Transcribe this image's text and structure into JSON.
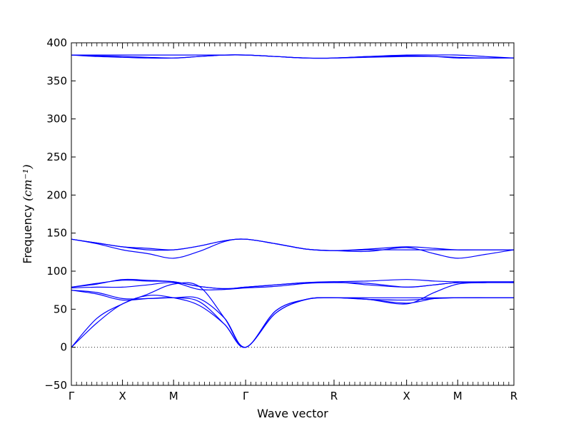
{
  "chart_data": {
    "type": "line",
    "title": "",
    "xlabel": "Wave vector",
    "ylabel": "Frequency ",
    "ylabel_math": "(cm⁻¹)",
    "ylim": [
      -50,
      400
    ],
    "yticks": [
      -50,
      0,
      50,
      100,
      150,
      200,
      250,
      300,
      350,
      400
    ],
    "xlim": [
      0,
      8.66
    ],
    "high_symmetry_points": [
      {
        "label": "Γ",
        "x": 0.0
      },
      {
        "label": "X",
        "x": 1.0
      },
      {
        "label": "M",
        "x": 2.0
      },
      {
        "label": "Γ",
        "x": 3.41
      },
      {
        "label": "R",
        "x": 5.14
      },
      {
        "label": "X",
        "x": 6.56
      },
      {
        "label": "M",
        "x": 7.56
      },
      {
        "label": "R",
        "x": 8.66
      }
    ],
    "zero_line": {
      "y": 0,
      "style": "dotted"
    },
    "line_color": "#0000ff",
    "grid": false,
    "legend": "none",
    "series": [
      {
        "x": [
          0,
          0.5,
          1.0,
          1.5,
          2.0,
          2.5,
          3.0,
          3.41,
          4.0,
          4.6,
          5.14,
          5.8,
          6.56,
          7.1,
          7.56,
          8.1,
          8.66
        ],
        "y": [
          384,
          384,
          384,
          384,
          384,
          384,
          384,
          384,
          382,
          380,
          380,
          381,
          382,
          382,
          381,
          380,
          380
        ]
      },
      {
        "x": [
          0,
          0.5,
          1.0,
          1.5,
          2.0,
          2.5,
          3.0,
          3.41,
          4.0,
          4.6,
          5.14,
          5.8,
          6.56,
          7.1,
          7.56,
          8.1,
          8.66
        ],
        "y": [
          384,
          383,
          382,
          381,
          380,
          382,
          384,
          384,
          382,
          380,
          380,
          382,
          384,
          384,
          384,
          382,
          380
        ]
      },
      {
        "x": [
          0,
          0.5,
          1.0,
          1.5,
          2.0,
          2.5,
          3.0,
          3.41,
          4.0,
          4.6,
          5.14,
          5.8,
          6.56,
          7.1,
          7.56,
          8.1,
          8.66
        ],
        "y": [
          384,
          382,
          381,
          380,
          380,
          382,
          384,
          384,
          382,
          380,
          380,
          382,
          383,
          382,
          380,
          380,
          380
        ]
      },
      {
        "x": [
          0,
          0.5,
          1.0,
          1.5,
          2.0,
          2.5,
          3.0,
          3.41,
          4.0,
          4.6,
          5.14,
          5.8,
          6.56,
          7.1,
          7.56,
          8.1,
          8.66
        ],
        "y": [
          142,
          137,
          132,
          130,
          128,
          133,
          140,
          142,
          136,
          129,
          127,
          128,
          128,
          128,
          128,
          128,
          128
        ]
      },
      {
        "x": [
          0,
          0.5,
          1.0,
          1.5,
          2.0,
          2.5,
          3.0,
          3.41,
          4.0,
          4.6,
          5.14,
          5.8,
          6.56,
          7.1,
          7.56,
          8.1,
          8.66
        ],
        "y": [
          142,
          137,
          132,
          128,
          128,
          133,
          140,
          142,
          136,
          129,
          127,
          129,
          132,
          130,
          128,
          128,
          128
        ]
      },
      {
        "x": [
          0,
          0.5,
          1.0,
          1.5,
          2.0,
          2.5,
          3.0,
          3.41,
          4.0,
          4.6,
          5.14,
          5.8,
          6.56,
          7.1,
          7.56,
          8.1,
          8.66
        ],
        "y": [
          142,
          136,
          128,
          123,
          117,
          126,
          139,
          142,
          136,
          129,
          127,
          126,
          131,
          123,
          117,
          122,
          128
        ]
      },
      {
        "x": [
          0,
          0.5,
          1.0,
          1.5,
          2.0,
          2.5,
          3.0,
          3.41,
          4.0,
          4.6,
          5.14,
          5.8,
          6.56,
          7.1,
          7.56,
          8.1,
          8.66
        ],
        "y": [
          79,
          83,
          89,
          88,
          86,
          80,
          77,
          79,
          82,
          85,
          86,
          87,
          89,
          87,
          86,
          86,
          86
        ]
      },
      {
        "x": [
          0,
          0.5,
          1.0,
          1.5,
          2.0,
          2.5,
          3.0,
          3.41,
          4.0,
          4.6,
          5.14,
          5.8,
          6.56,
          7.1,
          7.56,
          8.1,
          8.66
        ],
        "y": [
          79,
          84,
          88,
          87,
          86,
          80,
          77,
          79,
          82,
          85,
          86,
          82,
          79,
          82,
          85,
          85,
          86
        ]
      },
      {
        "x": [
          0,
          0.5,
          1.0,
          1.5,
          2.0,
          2.5,
          3.0,
          3.41,
          4.0,
          4.6,
          5.14,
          5.8,
          6.56,
          7.1,
          7.56,
          8.1,
          8.66
        ],
        "y": [
          78,
          79,
          79,
          82,
          85,
          76,
          76,
          78,
          80,
          84,
          85,
          84,
          79,
          82,
          85,
          85,
          85
        ]
      },
      {
        "x": [
          0,
          0.5,
          1.0,
          1.5,
          2.0,
          2.5,
          3.0,
          3.41,
          4.0,
          4.6,
          5.14,
          5.8,
          6.56,
          7.1,
          7.56,
          8.1,
          8.66
        ],
        "y": [
          75,
          72,
          64,
          64,
          65,
          64,
          38,
          0,
          48,
          63,
          65,
          65,
          65,
          65,
          65,
          65,
          65
        ]
      },
      {
        "x": [
          0,
          0.5,
          1.0,
          1.5,
          2.0,
          2.5,
          3.0,
          3.41,
          4.0,
          4.6,
          5.14,
          5.8,
          6.56,
          7.1,
          7.56,
          8.1,
          8.66
        ],
        "y": [
          75,
          70,
          62,
          64,
          65,
          60,
          30,
          0,
          45,
          63,
          65,
          63,
          62,
          64,
          65,
          65,
          65
        ]
      },
      {
        "x": [
          0,
          0.5,
          1.0,
          1.5,
          2.0,
          2.5,
          3.0,
          3.41,
          4.0,
          4.6,
          5.14,
          5.8,
          6.56,
          7.1,
          7.56,
          8.1,
          8.66
        ],
        "y": [
          0,
          38,
          57,
          70,
          83,
          80,
          38,
          0,
          48,
          63,
          65,
          63,
          57,
          72,
          83,
          85,
          85
        ]
      },
      {
        "x": [
          0,
          0.5,
          1.0,
          1.5,
          2.0,
          2.5,
          3.0,
          3.41,
          4.0,
          4.6,
          5.14,
          5.8,
          6.56,
          7.1,
          7.56,
          8.1,
          8.66
        ],
        "y": [
          0,
          32,
          57,
          68,
          65,
          55,
          30,
          0,
          45,
          63,
          65,
          63,
          58,
          64,
          65,
          65,
          65
        ]
      }
    ]
  }
}
